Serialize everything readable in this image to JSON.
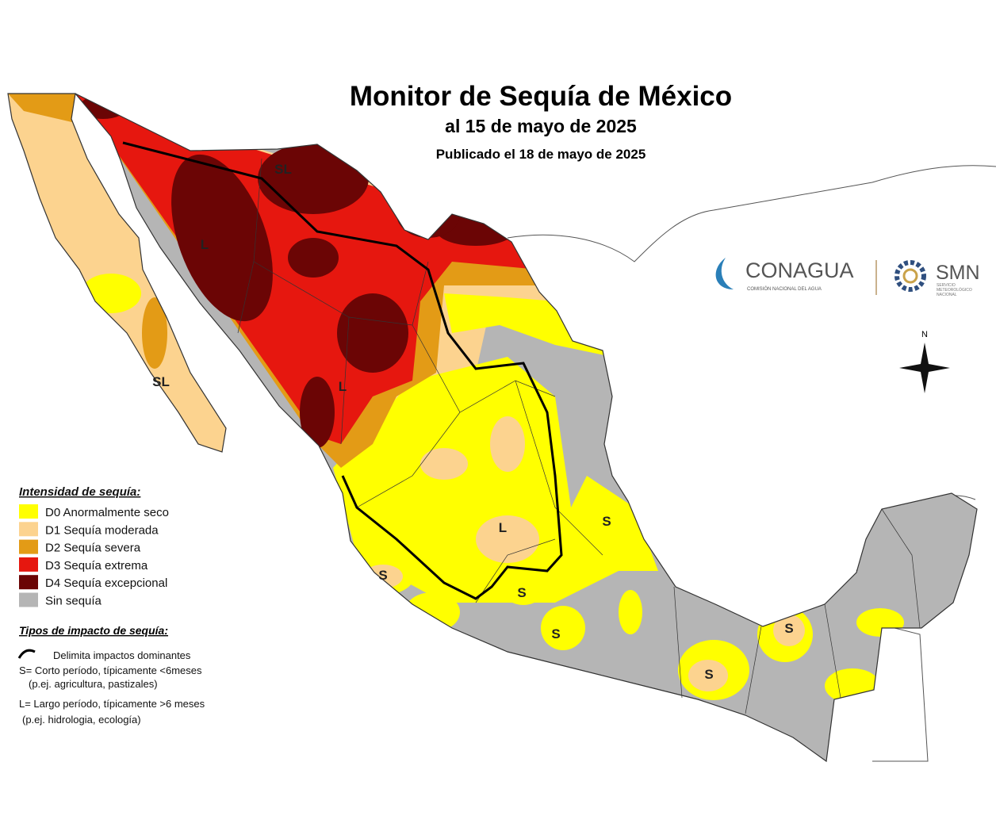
{
  "title": "Monitor de Sequía de México",
  "subtitle": "al 15 de mayo de 2025",
  "published": "Publicado el 18 de mayo de 2025",
  "legend": {
    "title": "Intensidad de sequía:",
    "items": [
      {
        "label": "D0 Anormalmente seco",
        "color": "#ffff00"
      },
      {
        "label": "D1 Sequía moderada",
        "color": "#fcd38f"
      },
      {
        "label": "D2 Sequía severa",
        "color": "#e39b16"
      },
      {
        "label": "D3 Sequía extrema",
        "color": "#e6170f"
      },
      {
        "label": "D4 Sequía excepcional",
        "color": "#6b0505"
      },
      {
        "label": "Sin sequía",
        "color": "#b5b5b5"
      }
    ]
  },
  "impact": {
    "title": "Tipos de impacto de sequía:",
    "items": [
      "Delimita impactos dominantes",
      "S= Corto período, típicamente <6meses",
      "(p.ej. agricultura, pastizales)",
      "L= Largo período, típicamente >6 meses",
      "(p.ej. hidrologia, ecología)"
    ]
  },
  "map_labels": [
    "SL",
    "L",
    "SL",
    "L",
    "L",
    "S",
    "S",
    "S",
    "S",
    "S",
    "S"
  ],
  "logos": {
    "conagua": "CONAGUA",
    "conagua_sub": "COMISIÓN NACIONAL DEL AGUA",
    "smn": "SMN",
    "smn_sub": [
      "SERVICIO",
      "METEOROLÓGICO",
      "NACIONAL"
    ]
  },
  "compass": "N"
}
